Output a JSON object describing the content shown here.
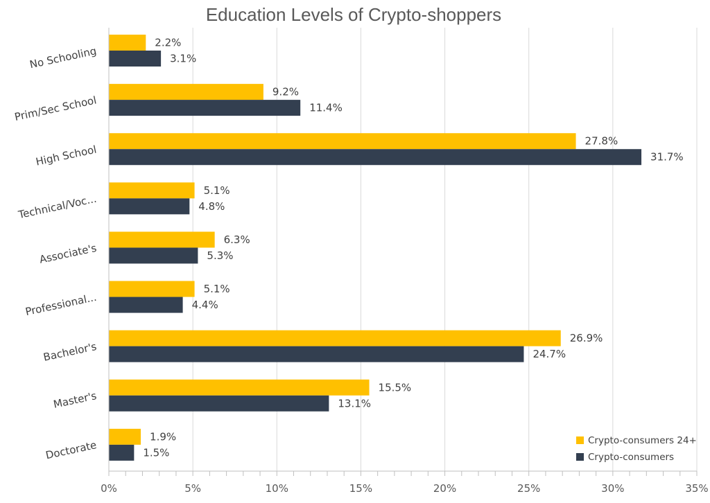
{
  "chart_data": {
    "type": "bar",
    "orientation": "horizontal",
    "title": "Education Levels of Crypto-shoppers",
    "xlabel": "",
    "ylabel": "",
    "categories": [
      "No Schooling",
      "Prim/Sec School",
      "High School",
      "Technical/Voc...",
      "Associate's",
      "Professional...",
      "Bachelor's",
      "Master's",
      "Doctorate"
    ],
    "series": [
      {
        "name": "Crypto-consumers 24+",
        "color": "#FFC000",
        "values": [
          2.2,
          9.2,
          27.8,
          5.1,
          6.3,
          5.1,
          26.9,
          15.5,
          1.9
        ],
        "labels": [
          "2.2%",
          "9.2%",
          "27.8%",
          "5.1%",
          "6.3%",
          "5.1%",
          "26.9%",
          "15.5%",
          "1.9%"
        ]
      },
      {
        "name": "Crypto-consumers",
        "color": "#333F50",
        "values": [
          3.1,
          11.4,
          31.7,
          4.8,
          5.3,
          4.4,
          24.7,
          13.1,
          1.5
        ],
        "labels": [
          "3.1%",
          "11.4%",
          "31.7%",
          "4.8%",
          "5.3%",
          "4.4%",
          "24.7%",
          "13.1%",
          "1.5%"
        ]
      }
    ],
    "xlim": [
      0,
      35
    ],
    "xticks": [
      "0%",
      "5%",
      "10%",
      "15%",
      "20%",
      "25%",
      "30%",
      "35%"
    ],
    "grid": true,
    "legend_position": "bottom-right"
  }
}
